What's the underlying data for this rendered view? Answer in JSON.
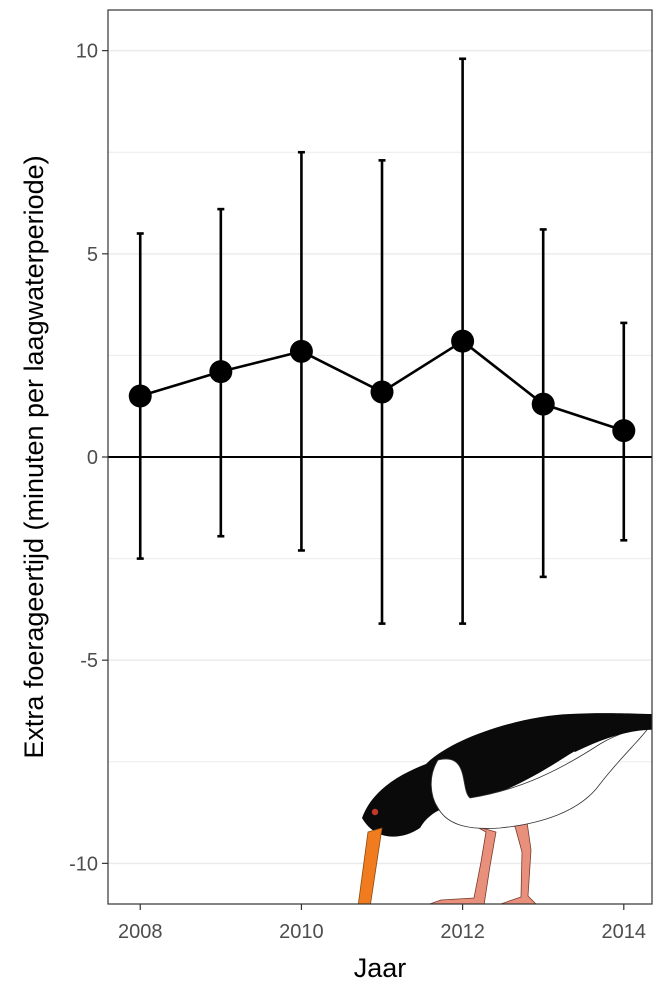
{
  "chart_data": {
    "type": "line",
    "xlabel": "Jaar",
    "ylabel": "Extra foerageertijd (minuten per laagwaterperiode)",
    "xlim": [
      2007.6,
      2014.35
    ],
    "ylim": [
      -11,
      11
    ],
    "x_ticks": [
      2008,
      2010,
      2012,
      2014
    ],
    "y_ticks": [
      -10,
      -5,
      0,
      5,
      10
    ],
    "y_tick_labels": [
      "-10",
      "-5",
      "0",
      "5",
      "10"
    ],
    "grid": true,
    "reference_line_y": 0,
    "points": [
      {
        "x": 2008,
        "y": 1.5,
        "lower": -2.5,
        "upper": 5.5
      },
      {
        "x": 2009,
        "y": 2.1,
        "lower": -1.95,
        "upper": 6.1
      },
      {
        "x": 2010,
        "y": 2.6,
        "lower": -2.3,
        "upper": 7.5
      },
      {
        "x": 2011,
        "y": 1.6,
        "lower": -4.1,
        "upper": 7.3
      },
      {
        "x": 2012,
        "y": 2.85,
        "lower": -4.1,
        "upper": 9.8
      },
      {
        "x": 2013,
        "y": 1.3,
        "lower": -2.95,
        "upper": 5.6
      },
      {
        "x": 2014,
        "y": 0.65,
        "lower": -2.05,
        "upper": 3.3
      }
    ],
    "colors": {
      "series": "#000000",
      "grid": "#ebebeb",
      "panel_border": "#333333",
      "bird_body": "#000000",
      "bird_belly": "#ffffff",
      "bird_bill": "#f07c1f",
      "bird_legs": "#e8907c",
      "bird_eye": "#c0392b"
    },
    "illustration": "oystercatcher"
  }
}
